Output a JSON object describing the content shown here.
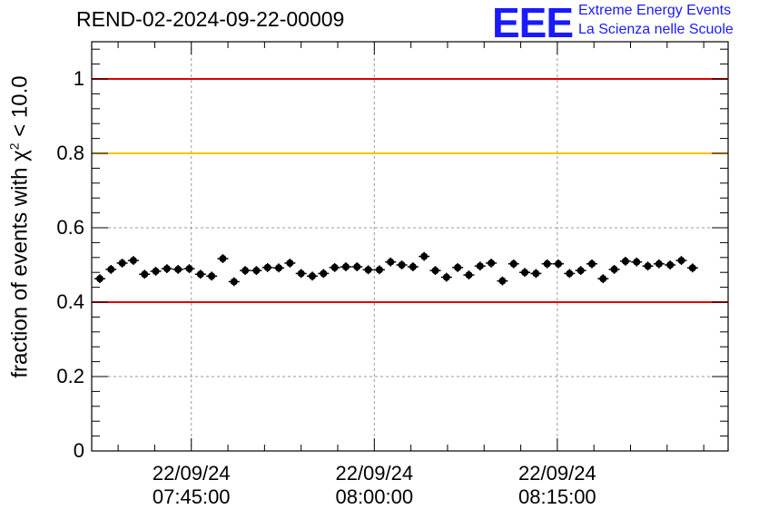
{
  "header": {
    "title": "REND-02-2024-09-22-00009",
    "logo_text": "EEE",
    "logo_line1": "Extreme Energy Events",
    "logo_line2": "La Scienza nelle Scuole"
  },
  "colors": {
    "red_line": "#e00000",
    "yellow_line": "#ffc000",
    "marker": "#000000",
    "logo": "#1a1aff"
  },
  "chart_data": {
    "type": "scatter",
    "title": "REND-02-2024-09-22-00009",
    "xlabel": "",
    "ylabel_prefix": "fraction of events with ",
    "ylabel_symbol": "χ",
    "ylabel_sup": "2",
    "ylabel_suffix": " < 10.0",
    "ylim": [
      0,
      1.1
    ],
    "xlim": [
      "2024-09-22 07:36:50",
      "2024-09-22 08:29:00"
    ],
    "grid": true,
    "y_ticks": [
      "0",
      "0.2",
      "0.4",
      "0.6",
      "0.8",
      "1"
    ],
    "x_ticks": [
      {
        "date": "22/09/24",
        "time": "07:45:00"
      },
      {
        "date": "22/09/24",
        "time": "08:00:00"
      },
      {
        "date": "22/09/24",
        "time": "08:15:00"
      }
    ],
    "reference_lines": [
      {
        "y": 1.0,
        "color": "red"
      },
      {
        "y": 0.8,
        "color": "yellow"
      },
      {
        "y": 0.4,
        "color": "red"
      }
    ],
    "x_start": "2024-09-22 07:37:30",
    "x_step_seconds": 55,
    "y_error": 0.012,
    "values": [
      0.463,
      0.488,
      0.505,
      0.512,
      0.475,
      0.483,
      0.49,
      0.488,
      0.49,
      0.475,
      0.47,
      0.517,
      0.455,
      0.485,
      0.485,
      0.493,
      0.492,
      0.505,
      0.477,
      0.47,
      0.477,
      0.493,
      0.495,
      0.495,
      0.487,
      0.487,
      0.508,
      0.5,
      0.495,
      0.523,
      0.485,
      0.467,
      0.493,
      0.473,
      0.497,
      0.505,
      0.457,
      0.503,
      0.48,
      0.477,
      0.503,
      0.503,
      0.477,
      0.485,
      0.503,
      0.463,
      0.488,
      0.51,
      0.508,
      0.497,
      0.503,
      0.5,
      0.512,
      0.492
    ]
  }
}
